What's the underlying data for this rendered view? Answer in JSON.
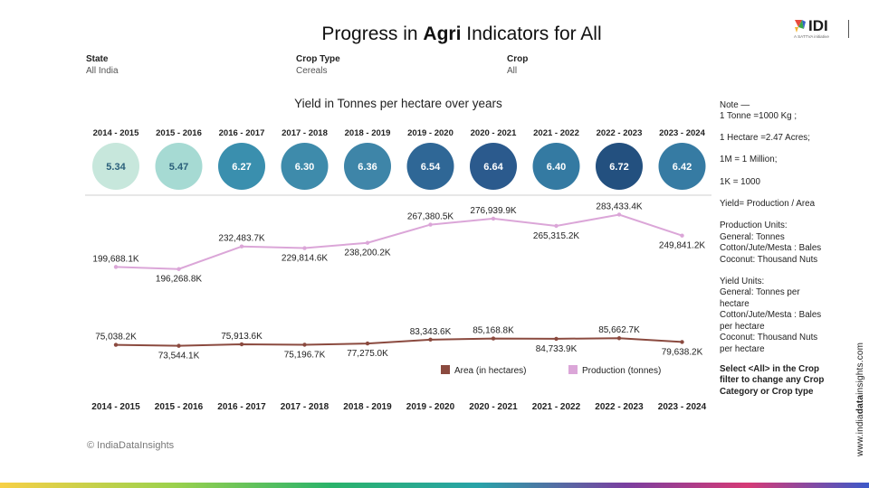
{
  "header": {
    "title_prefix": "Progress in ",
    "title_bold": "Agri",
    "title_suffix": " Indicators for All",
    "logo_text": "IDI",
    "logo_tagline": "A SATTVA initiative"
  },
  "filters": [
    {
      "label": "State",
      "value": "All India"
    },
    {
      "label": "Crop Type",
      "value": "Cereals"
    },
    {
      "label": "Crop",
      "value": "All"
    }
  ],
  "yield_title": "Yield in Tonnes per hectare over years",
  "notes": {
    "lines": [
      "Note —\n1 Tonne =1000 Kg ;",
      "1 Hectare =2.47 Acres;",
      "1M = 1 Million;",
      "1K = 1000",
      "Yield= Production / Area",
      "Production Units:\nGeneral: Tonnes\nCotton/Jute/Mesta : Bales\nCoconut: Thousand Nuts",
      "Yield Units:\nGeneral: Tonnes per\nhectare\nCotton/Jute/Mesta : Bales\nper hectare\nCoconut: Thousand Nuts\nper hectare"
    ],
    "instruction": "Select <All> in the Crop\nfilter to change any Crop\nCategory or  Crop type"
  },
  "footer": {
    "copyright": "© IndiaDataInsights",
    "watermark_prefix": "www.india",
    "watermark_bold": "data",
    "watermark_suffix": "insights.com"
  },
  "chart_data": [
    {
      "type": "bubble",
      "title": "Yield in Tonnes per hectare over years",
      "categories": [
        "2014 - 2015",
        "2015 - 2016",
        "2016 - 2017",
        "2017 - 2018",
        "2018 - 2019",
        "2019 - 2020",
        "2020 - 2021",
        "2021 - 2022",
        "2022 - 2023",
        "2023 - 2024"
      ],
      "values": [
        5.34,
        5.47,
        6.27,
        6.3,
        6.36,
        6.54,
        6.64,
        6.4,
        6.72,
        6.42
      ],
      "value_labels": [
        "5.34",
        "5.47",
        "6.27",
        "6.30",
        "6.36",
        "6.54",
        "6.64",
        "6.40",
        "6.72",
        "6.42"
      ],
      "colors": [
        "#c7e7dc",
        "#a6dad3",
        "#3a8fae",
        "#3e8bab",
        "#3e85a8",
        "#2f6796",
        "#2b5a8d",
        "#347aa2",
        "#23507f",
        "#367ba3"
      ]
    },
    {
      "type": "line",
      "xlabel": "",
      "ylabel": "",
      "categories": [
        "2014 - 2015",
        "2015 - 2016",
        "2016 - 2017",
        "2017 - 2018",
        "2018 - 2019",
        "2019 - 2020",
        "2020 - 2021",
        "2021 - 2022",
        "2022 - 2023",
        "2023 - 2024"
      ],
      "series": [
        {
          "name": "Area (in hectares)",
          "color": "#8b4a3f",
          "values": [
            75038.2,
            73544.1,
            75913.6,
            75196.7,
            77275.0,
            83343.6,
            85168.8,
            84733.9,
            85662.7,
            79638.2
          ],
          "labels": [
            "75,038.2K",
            "73,544.1K",
            "75,913.6K",
            "75,196.7K",
            "77,275.0K",
            "83,343.6K",
            "85,168.8K",
            "84,733.9K",
            "85,662.7K",
            "79,638.2K"
          ],
          "label_pos": [
            "above",
            "below",
            "above",
            "below",
            "below",
            "above",
            "above",
            "below",
            "above",
            "below"
          ]
        },
        {
          "name": "Production (tonnes)",
          "color": "#dba6d8",
          "values": [
            199688.1,
            196268.8,
            232483.7,
            229814.6,
            238200.2,
            267380.5,
            276939.9,
            265315.2,
            283433.4,
            249841.2
          ],
          "labels": [
            "199,688.1K",
            "196,268.8K",
            "232,483.7K",
            "229,814.6K",
            "238,200.2K",
            "267,380.5K",
            "276,939.9K",
            "265,315.2K",
            "283,433.4K",
            "249,841.2K"
          ],
          "label_pos": [
            "above",
            "below",
            "above",
            "below",
            "below",
            "above",
            "above",
            "below",
            "above",
            "below"
          ]
        }
      ]
    }
  ]
}
